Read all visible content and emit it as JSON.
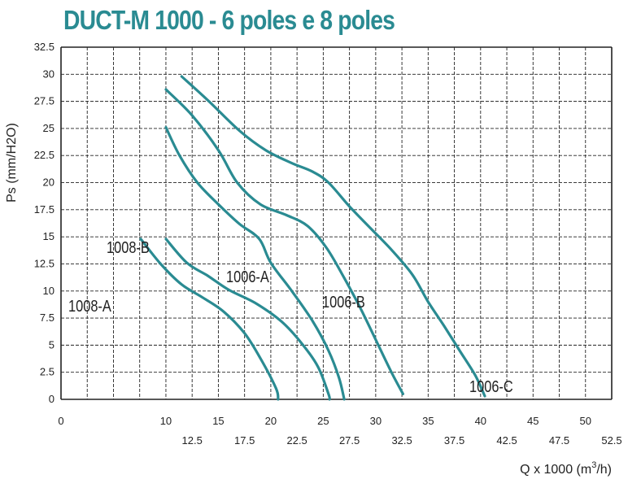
{
  "chart_data": {
    "type": "line",
    "title": "DUCT-M 1000 - 6 poles e 8 poles",
    "xlabel_main": "Q x 1000 (m",
    "xlabel_sup": "3",
    "xlabel_end": "/h)",
    "ylabel": "Ps (mm/H2O)",
    "xlim": [
      0,
      52.5
    ],
    "ylim": [
      0,
      32.5
    ],
    "x_ticks_upper": [
      "0",
      "10",
      "15",
      "20",
      "25",
      "30",
      "35",
      "40",
      "45",
      "50"
    ],
    "x_ticks_lower": [
      "12.5",
      "17.5",
      "22.5",
      "27.5",
      "32.5",
      "37.5",
      "42.5",
      "47.5",
      "52.5"
    ],
    "y_ticks": [
      "0",
      "2.5",
      "5",
      "7.5",
      "10",
      "12.5",
      "15",
      "17.5",
      "20",
      "22.5",
      "25",
      "27.5",
      "30",
      "32.5"
    ],
    "grid": true,
    "curve_color": "#2a8b92",
    "series": [
      {
        "name": "1008-A",
        "points": [
          [
            7.6,
            14.8
          ],
          [
            9.5,
            12.5
          ],
          [
            11.5,
            10.6
          ],
          [
            13.5,
            9.4
          ],
          [
            15.5,
            8.1
          ],
          [
            17.5,
            6.1
          ],
          [
            19.0,
            3.8
          ],
          [
            20.5,
            1.0
          ],
          [
            20.7,
            0
          ]
        ]
      },
      {
        "name": "1008-B",
        "points": [
          [
            10.0,
            14.8
          ],
          [
            12.0,
            12.6
          ],
          [
            14.0,
            11.4
          ],
          [
            16.0,
            10.1
          ],
          [
            18.5,
            8.9
          ],
          [
            21.0,
            7.2
          ],
          [
            23.0,
            5.1
          ],
          [
            24.5,
            3.0
          ],
          [
            25.5,
            0.5
          ],
          [
            25.6,
            0
          ]
        ]
      },
      {
        "name": "1006-A",
        "points": [
          [
            10.0,
            25.1
          ],
          [
            11.3,
            22.5
          ],
          [
            13.0,
            20.0
          ],
          [
            15.0,
            18.0
          ],
          [
            17.0,
            16.2
          ],
          [
            18.9,
            14.8
          ],
          [
            20.0,
            12.6
          ],
          [
            22.0,
            10.0
          ],
          [
            24.0,
            7.2
          ],
          [
            25.5,
            4.5
          ],
          [
            26.5,
            2.0
          ],
          [
            27.0,
            0
          ]
        ]
      },
      {
        "name": "1006-B",
        "points": [
          [
            10.0,
            28.6
          ],
          [
            12.5,
            26.2
          ],
          [
            15.0,
            23.0
          ],
          [
            16.8,
            20.0
          ],
          [
            19.0,
            18.0
          ],
          [
            21.5,
            17.0
          ],
          [
            23.5,
            16.0
          ],
          [
            25.3,
            14.0
          ],
          [
            27.0,
            11.2
          ],
          [
            28.5,
            8.5
          ],
          [
            30.0,
            5.5
          ],
          [
            31.5,
            2.5
          ],
          [
            32.6,
            0.5
          ]
        ]
      },
      {
        "name": "1006-C",
        "points": [
          [
            11.5,
            29.8
          ],
          [
            14.0,
            27.6
          ],
          [
            17.0,
            24.8
          ],
          [
            19.5,
            23.0
          ],
          [
            22.0,
            21.8
          ],
          [
            24.0,
            21.0
          ],
          [
            25.5,
            20.0
          ],
          [
            27.5,
            17.8
          ],
          [
            29.5,
            15.8
          ],
          [
            31.5,
            13.8
          ],
          [
            33.5,
            11.5
          ],
          [
            35.0,
            9.0
          ],
          [
            36.5,
            6.8
          ],
          [
            38.0,
            4.5
          ],
          [
            39.5,
            2.2
          ],
          [
            40.4,
            0.3
          ]
        ]
      }
    ],
    "curve_labels": [
      "1008-A",
      "1008-B",
      "1006-A",
      "1006-B",
      "1006-C"
    ]
  }
}
